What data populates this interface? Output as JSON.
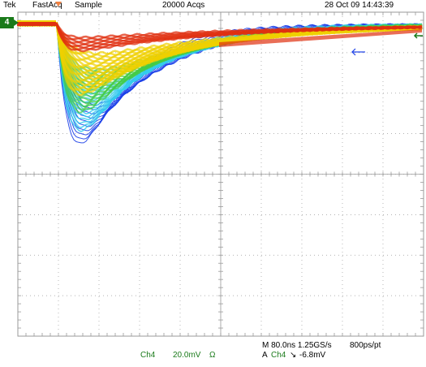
{
  "header": {
    "brand": "Tek",
    "mode": "FastAcq",
    "acquisition": "Sample",
    "acq_count": "20000 Acqs",
    "datetime": "28 Oct 09 14:43:39"
  },
  "channel_marker": {
    "label": "4"
  },
  "footer": {
    "channel": "Ch4",
    "volts_per_div": "20.0mV",
    "impedance_symbol": "Ω",
    "timebase": "M 80.0ns 1.25GS/s",
    "record": "800ps/pt",
    "trigger_prefix": "A",
    "trigger_source": "Ch4",
    "trigger_slope_symbol": "↘",
    "trigger_level": "-6.8mV"
  },
  "colors": {
    "grid": "#9a9a9a",
    "trace_hot": "#e03010",
    "trace_warm": "#f0d000",
    "trace_mid": "#44cc44",
    "trace_cool": "#33ccee",
    "trace_cold": "#1a3ee8",
    "channel_green": "#1a7a1a",
    "trigger_marker": "#f08040"
  },
  "icons": [
    "trigger-position-marker",
    "channel-level-marker",
    "trigger-level-arrow",
    "reference-arrow"
  ]
}
